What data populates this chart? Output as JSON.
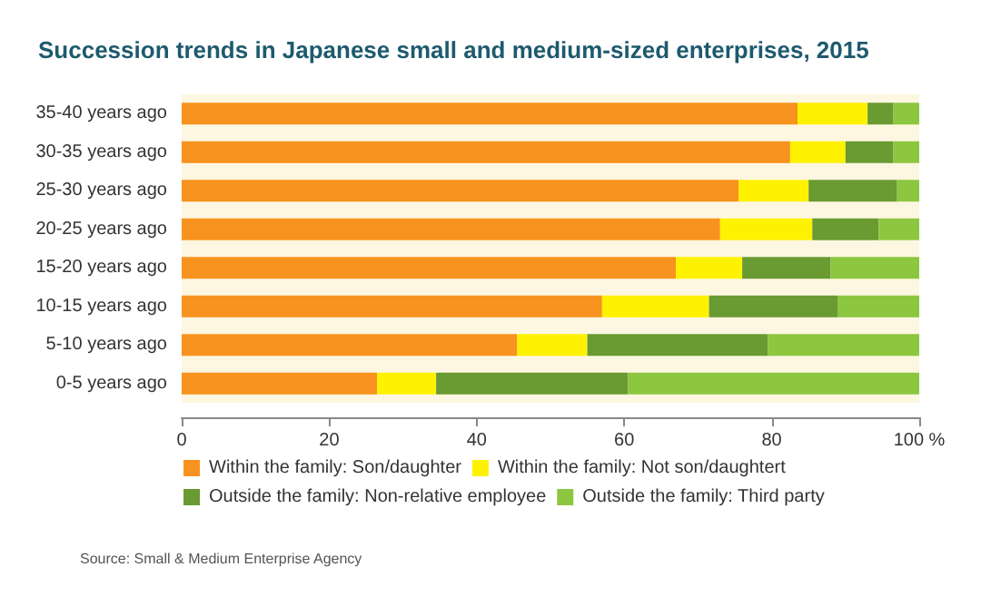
{
  "chart_data": {
    "type": "bar",
    "orientation": "horizontal",
    "stacked": true,
    "title": "Succession trends in Japanese small and medium-sized enterprises, 2015",
    "categories": [
      "35-40 years ago",
      "30-35 years ago",
      "25-30 years ago",
      "20-25 years ago",
      "15-20 years ago",
      "10-15 years ago",
      "5-10 years ago",
      "0-5 years ago"
    ],
    "series": [
      {
        "name": "Within the family: Son/daughter",
        "color": "#f7931e",
        "values": [
          83.5,
          82.5,
          75.5,
          73,
          67,
          57,
          45.5,
          26.5
        ]
      },
      {
        "name": "Within the family: Not son/daughtert",
        "color": "#fff200",
        "values": [
          9.5,
          7.5,
          9.5,
          12.5,
          9,
          14.5,
          9.5,
          8
        ]
      },
      {
        "name": "Outside the family: Non-relative employee",
        "color": "#6a9a32",
        "values": [
          3.5,
          6.5,
          12,
          9,
          12,
          17.5,
          24.5,
          26
        ]
      },
      {
        "name": "Outside the family: Third party",
        "color": "#8dc63f",
        "values": [
          3.5,
          3.5,
          3,
          5.5,
          12,
          11,
          20.5,
          39.5
        ]
      }
    ],
    "xlim": [
      0,
      100
    ],
    "xticks": [
      0,
      20,
      40,
      60,
      80,
      {
        "value": 100,
        "label": "100 %"
      }
    ],
    "grid": false,
    "legend": "bottom",
    "annotations": [
      "Source: Small & Medium Enterprise Agency"
    ]
  }
}
